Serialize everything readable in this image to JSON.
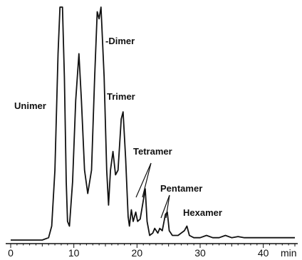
{
  "chart_data": {
    "type": "line",
    "title": "",
    "xlabel": "",
    "ylabel": "",
    "x_unit_label": "min",
    "xlim": [
      0,
      45
    ],
    "ylim": [
      0,
      100
    ],
    "grid": false,
    "x_ticks": [
      0,
      10,
      20,
      30,
      40
    ],
    "series": [
      {
        "points": [
          [
            0,
            0
          ],
          [
            3,
            0
          ],
          [
            5,
            0
          ],
          [
            6,
            1
          ],
          [
            6.5,
            6
          ],
          [
            7,
            30
          ],
          [
            7.5,
            80
          ],
          [
            7.8,
            100
          ],
          [
            8.2,
            100
          ],
          [
            8.5,
            70
          ],
          [
            8.8,
            25
          ],
          [
            9.0,
            8
          ],
          [
            9.3,
            6
          ],
          [
            9.8,
            25
          ],
          [
            10.3,
            60
          ],
          [
            10.8,
            80
          ],
          [
            11.2,
            60
          ],
          [
            11.7,
            30
          ],
          [
            12.2,
            20
          ],
          [
            12.8,
            30
          ],
          [
            13.3,
            70
          ],
          [
            13.7,
            98
          ],
          [
            14.0,
            95
          ],
          [
            14.3,
            100
          ],
          [
            14.8,
            70
          ],
          [
            15.2,
            30
          ],
          [
            15.5,
            15
          ],
          [
            15.8,
            30
          ],
          [
            16.2,
            38
          ],
          [
            16.6,
            28
          ],
          [
            17.0,
            30
          ],
          [
            17.5,
            52
          ],
          [
            17.8,
            55
          ],
          [
            18.2,
            35
          ],
          [
            18.6,
            10
          ],
          [
            18.8,
            6
          ],
          [
            19.1,
            13
          ],
          [
            19.4,
            8
          ],
          [
            19.8,
            12
          ],
          [
            20.1,
            8
          ],
          [
            20.5,
            9
          ],
          [
            21.0,
            17
          ],
          [
            21.3,
            22
          ],
          [
            21.6,
            8
          ],
          [
            22.0,
            2
          ],
          [
            22.5,
            3
          ],
          [
            22.8,
            5
          ],
          [
            23.3,
            3
          ],
          [
            23.6,
            5
          ],
          [
            24.0,
            4
          ],
          [
            24.5,
            11
          ],
          [
            24.8,
            12
          ],
          [
            25.1,
            4
          ],
          [
            25.6,
            2
          ],
          [
            26.5,
            2
          ],
          [
            27.5,
            4
          ],
          [
            27.9,
            6
          ],
          [
            28.3,
            2
          ],
          [
            29,
            1
          ],
          [
            30,
            1
          ],
          [
            31,
            2
          ],
          [
            32,
            1
          ],
          [
            33,
            1
          ],
          [
            34,
            2
          ],
          [
            35,
            1
          ],
          [
            36,
            1.5
          ],
          [
            37,
            1
          ],
          [
            38,
            1
          ],
          [
            39,
            1
          ],
          [
            40,
            1
          ],
          [
            42,
            1
          ],
          [
            45,
            1
          ]
        ]
      }
    ],
    "annotations": [
      {
        "text": "Unimer"
      },
      {
        "text": "-Dimer"
      },
      {
        "text": "Trimer"
      },
      {
        "text": "Tetramer"
      },
      {
        "text": "Pentamer"
      },
      {
        "text": "Hexamer"
      }
    ]
  }
}
